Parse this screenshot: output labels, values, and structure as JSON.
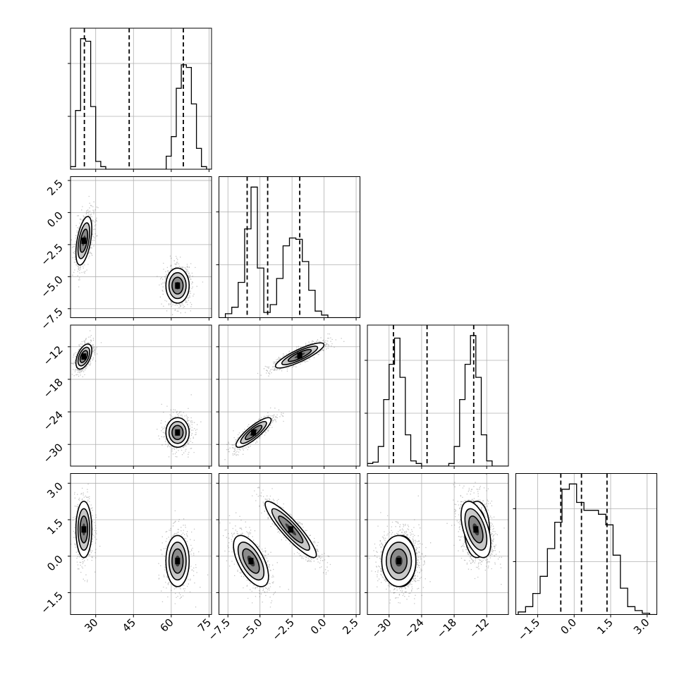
{
  "chart_data": {
    "type": "corner",
    "title": "",
    "parameters": [
      {
        "label": "",
        "range": [
          20,
          76
        ],
        "ticks": [
          30,
          45,
          60,
          75
        ],
        "tick_labels": [
          "30",
          "45",
          "60",
          "75"
        ],
        "quantiles": [
          25.5,
          43.3,
          64.8
        ],
        "hist_bins_left": [
          20,
          22,
          24,
          26,
          28,
          30,
          32,
          34,
          36,
          38,
          40,
          42,
          44,
          46,
          48,
          50,
          52,
          54,
          56,
          58,
          60,
          62,
          64,
          66,
          68,
          70,
          72,
          74
        ],
        "hist_bin_width": 2,
        "hist_counts": [
          0.02,
          0.45,
          1.0,
          0.98,
          0.48,
          0.06,
          0.02,
          0,
          0,
          0,
          0,
          0,
          0,
          0,
          0,
          0,
          0,
          0,
          0,
          0.1,
          0.25,
          0.62,
          0.8,
          0.78,
          0.5,
          0.16,
          0.02,
          0
        ]
      },
      {
        "label": "",
        "range": [
          -8.2,
          2.8
        ],
        "ticks": [
          -7.5,
          -5.0,
          -2.5,
          0.0,
          2.5
        ],
        "tick_labels": [
          "−7.5",
          "−5.0",
          "−2.5",
          "0.0",
          "2.5"
        ],
        "quantiles": [
          -6.0,
          -4.4,
          -1.9
        ],
        "hist_bins_left": [
          -8.2,
          -7.7,
          -7.2,
          -6.7,
          -6.2,
          -5.7,
          -5.2,
          -4.7,
          -4.2,
          -3.7,
          -3.2,
          -2.7,
          -2.2,
          -1.7,
          -1.2,
          -0.7,
          -0.2,
          0.3,
          0.8,
          1.3,
          1.8,
          2.3
        ],
        "hist_bin_width": 0.5,
        "hist_counts": [
          0.0,
          0.03,
          0.08,
          0.27,
          0.68,
          1.0,
          0.38,
          0.04,
          0.1,
          0.3,
          0.55,
          0.61,
          0.6,
          0.43,
          0.21,
          0.05,
          0.02,
          0,
          0,
          0,
          0,
          0
        ]
      },
      {
        "label": "",
        "range": [
          -34,
          -8
        ],
        "ticks": [
          -30,
          -24,
          -18,
          -12
        ],
        "tick_labels": [
          "−30",
          "−24",
          "−18",
          "−12"
        ],
        "quantiles": [
          -29.2,
          -23.0,
          -14.4
        ],
        "hist_bins_left": [
          -34,
          -33,
          -32,
          -31,
          -30,
          -29,
          -28,
          -27,
          -26,
          -25,
          -24,
          -23,
          -22,
          -21,
          -20,
          -19,
          -18,
          -17,
          -16,
          -15,
          -14,
          -13,
          -12,
          -11,
          -10,
          -9
        ],
        "hist_bin_width": 1,
        "hist_counts": [
          0.02,
          0.03,
          0.15,
          0.51,
          0.78,
          0.98,
          0.68,
          0.24,
          0.04,
          0.02,
          0,
          0,
          0,
          0,
          0,
          0.02,
          0.15,
          0.51,
          0.78,
          1.0,
          0.68,
          0.24,
          0.04,
          0,
          0,
          0
        ]
      },
      {
        "label": "",
        "range": [
          -2.4,
          3.4
        ],
        "ticks": [
          -1.5,
          0.0,
          1.5,
          3.0
        ],
        "tick_labels": [
          "−1.5",
          "0.0",
          "1.5",
          "3.0"
        ],
        "quantiles": [
          -0.55,
          0.3,
          1.35
        ],
        "hist_bins_left": [
          -2.3,
          -2.0,
          -1.7,
          -1.4,
          -1.1,
          -0.8,
          -0.5,
          -0.2,
          0.1,
          0.4,
          0.7,
          1.0,
          1.3,
          1.6,
          1.9,
          2.2,
          2.5,
          2.8,
          3.1
        ],
        "hist_bin_width": 0.3,
        "hist_counts": [
          0.02,
          0.06,
          0.16,
          0.29,
          0.5,
          0.7,
          0.95,
          0.99,
          0.85,
          0.79,
          0.79,
          0.76,
          0.68,
          0.45,
          0.2,
          0.06,
          0.03,
          0.01,
          0
        ]
      }
    ],
    "modes": [
      {
        "mean": [
          25.3,
          -2.2,
          -13.8,
          1.1
        ],
        "sd": [
          1.5,
          0.9,
          1.1,
          0.55
        ],
        "cross_corr": {
          "0-1": 0.5,
          "0-2": 0.5,
          "1-3": -0.6
        }
      },
      {
        "mean": [
          62.5,
          -5.7,
          -27.8,
          -0.2
        ],
        "sd": [
          2.2,
          0.65,
          1.3,
          0.5
        ]
      },
      {
        "mean": [
          -1.9,
          -13.6
        ],
        "pair": [
          1,
          2
        ],
        "sd": [
          0.9,
          1.1
        ],
        "corr": 0.85
      },
      {
        "mean": [
          -5.5,
          -27.8
        ],
        "pair": [
          1,
          2
        ],
        "sd": [
          0.65,
          1.3
        ],
        "corr": 0.85
      },
      {
        "mean": [
          -2.6,
          1.1
        ],
        "pair": [
          1,
          3
        ],
        "sd": [
          0.95,
          0.55
        ],
        "corr": -0.9
      },
      {
        "mean": [
          -5.7,
          -0.2
        ],
        "pair": [
          1,
          3
        ],
        "sd": [
          0.65,
          0.5
        ],
        "corr": -0.6
      },
      {
        "mean": [
          -28.2,
          -0.2
        ],
        "pair": [
          2,
          3
        ],
        "sd": [
          1.5,
          0.5
        ],
        "corr": 0.0
      },
      {
        "mean": [
          -14.0,
          1.1
        ],
        "pair": [
          2,
          3
        ],
        "sd": [
          1.3,
          0.55
        ],
        "corr": -0.5
      }
    ],
    "y_tick_labels": {
      "1": [
        "2.5",
        "0.0",
        "−2.5",
        "−5.0",
        "−7.5"
      ],
      "2": [
        "−12",
        "−18",
        "−24",
        "−30"
      ],
      "3": [
        "3.0",
        "1.5",
        "0.0",
        "−1.5"
      ]
    },
    "grid": true,
    "quantile_style": "dashed"
  }
}
